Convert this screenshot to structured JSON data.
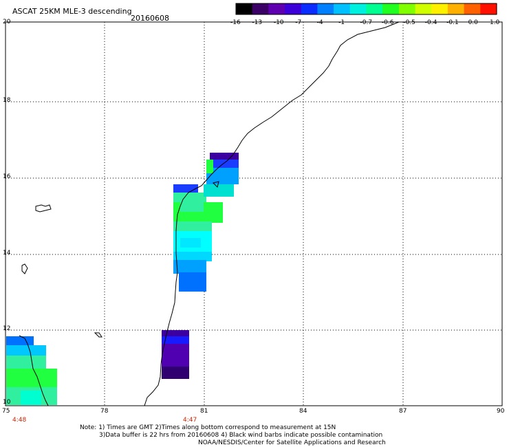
{
  "header": {
    "title": "ASCAT 25KM MLE-3 descending",
    "date": "20160608"
  },
  "colorbar": {
    "labels": [
      "-16",
      "-13",
      "-10",
      "-7",
      "-4",
      "-1",
      "-0.7",
      "-0.6",
      "-0.5",
      "-0.4",
      "-0.1",
      "0.0",
      "1.0"
    ],
    "colors": [
      "#000000",
      "#3a0066",
      "#5e00b0",
      "#3c00d8",
      "#0a2cff",
      "#0080ff",
      "#00c0ff",
      "#00f0e0",
      "#00ff90",
      "#20ff20",
      "#80ff00",
      "#d0ff00",
      "#fff000",
      "#ffb000",
      "#ff6000",
      "#ff1000"
    ]
  },
  "axes": {
    "lat_labels": [
      "20",
      "18",
      "16",
      "14",
      "12",
      "10"
    ],
    "lon_labels": [
      "75",
      "78",
      "81",
      "84",
      "87",
      "90"
    ],
    "xlim": [
      75,
      90
    ],
    "ylim": [
      10,
      20
    ]
  },
  "times": [
    "4:48",
    "4:47"
  ],
  "notes": {
    "line1": "Note: 1) Times are GMT 2)Times along bottom correspond to measurement at 15N",
    "line2": "3)Data buffer is 22 hrs from 20160608 4) Black wind barbs indicate possible contamination",
    "line3": "NOAA/NESDIS/Center for Satellite Applications and Research"
  }
}
